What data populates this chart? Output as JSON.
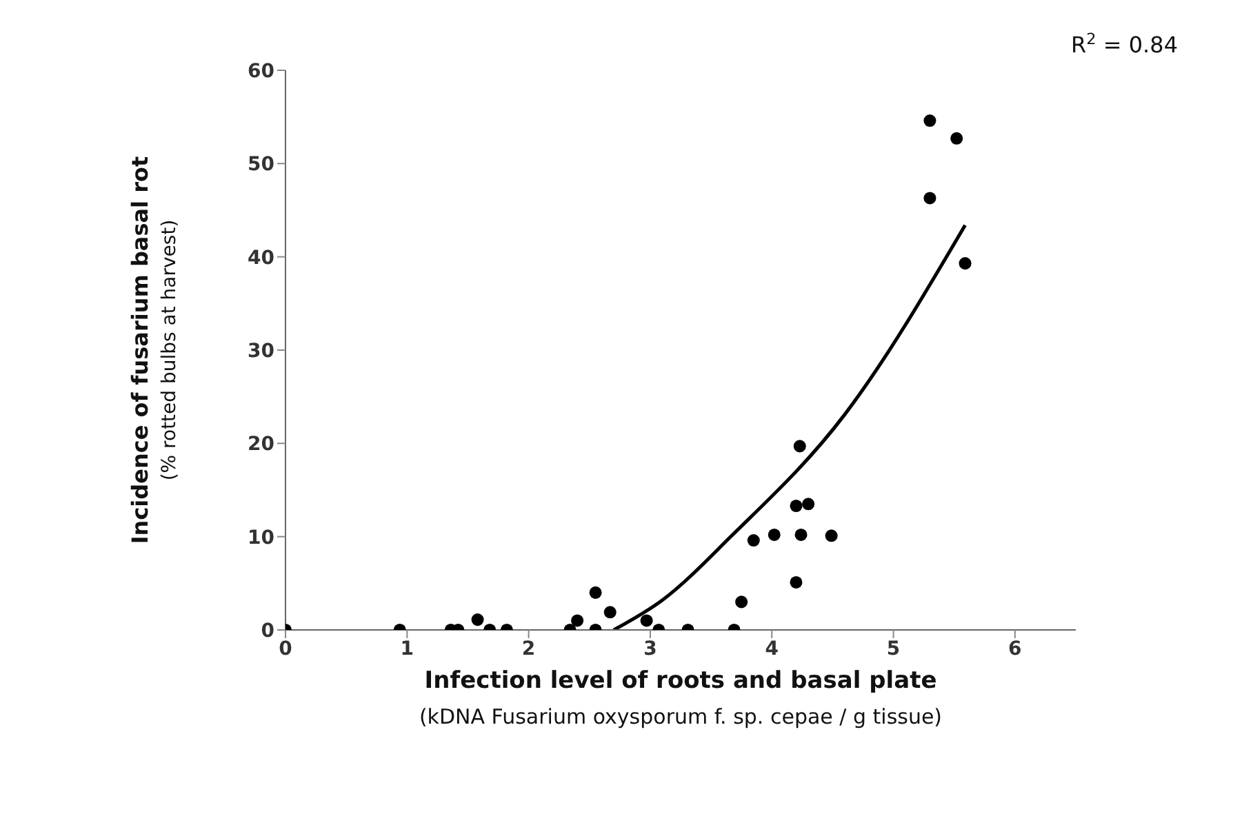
{
  "chart_data": {
    "type": "scatter",
    "xlabel": "Infection level of roots and basal plate\n(kDNA Fusarium oxysporum f. sp. cepae / g tissue)",
    "ylabel": "Incidence of fusarium basal rot\n(% rotted bulbs at harvest)",
    "annotations": [
      "R$^{2}$ = 0.84"
    ],
    "xlim": [
      0,
      6.5
    ],
    "xticks": [
      0,
      1,
      2,
      3,
      4,
      5,
      6
    ],
    "ylim": [
      0,
      60
    ],
    "yticks": [
      0,
      10,
      20,
      30,
      40,
      50,
      60
    ],
    "grid": false,
    "marker": "circle",
    "series": [
      {
        "color": "#000000",
        "x": [
          0,
          0.94,
          1.36,
          1.42,
          1.58,
          1.68,
          1.82,
          2.34,
          2.4,
          2.55,
          2.55,
          2.67,
          2.97,
          3.07,
          3.31,
          3.69,
          3.75,
          3.85,
          4.02,
          4.2,
          4.23,
          4.2,
          4.3,
          4.24,
          4.49,
          5.3,
          5.52,
          5.3,
          5.59
        ],
        "values": [
          0,
          0,
          0,
          0,
          1.1,
          0,
          0,
          0,
          1,
          4,
          0,
          1.9,
          1,
          0,
          0,
          0,
          3,
          9.6,
          10.2,
          5.1,
          19.7,
          13.3,
          13.5,
          10.2,
          10.1,
          54.6,
          52.7,
          46.3,
          39.3
        ]
      },
      {
        "type": "line",
        "color": "#000000",
        "line_style": "solid",
        "marker": "none",
        "x": [
          2.7,
          3.1,
          3.67,
          4.6,
          5.59
        ],
        "values": [
          0,
          3.2,
          10.1,
          23.1,
          43.4
        ]
      }
    ]
  }
}
